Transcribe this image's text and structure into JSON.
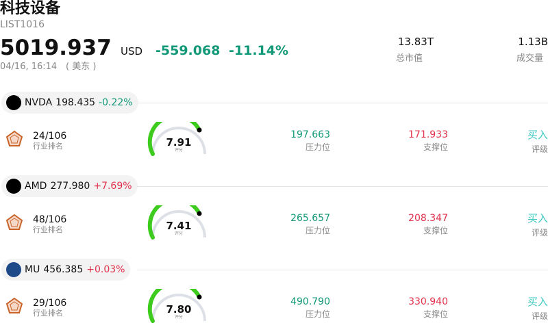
{
  "header": {
    "title": "科技设备",
    "code": "LIST1016",
    "price": "5019.937",
    "currency": "USD",
    "change": "-559.068",
    "change_pct": "-11.14%",
    "time": "04/16, 16:14",
    "market": "( 美东 )",
    "stats": [
      {
        "value": "13.83T",
        "label": "总市值"
      },
      {
        "value": "1.13B",
        "label": "成交量"
      }
    ]
  },
  "column_labels": {
    "rank": "行业排名",
    "score": "评分",
    "resistance": "压力位",
    "support": "支撑位",
    "rating": "评级"
  },
  "stocks": [
    {
      "ticker": "NVDA",
      "price": "198.435",
      "change": "-0.22%",
      "rank": "24/106",
      "score": "7.91",
      "resistance": "197.663",
      "support": "171.933",
      "rating": "买入"
    },
    {
      "ticker": "AMD",
      "price": "277.980",
      "change": "+7.69%",
      "rank": "48/106",
      "score": "7.41",
      "resistance": "265.657",
      "support": "208.347",
      "rating": "买入"
    },
    {
      "ticker": "MU",
      "price": "456.385",
      "change": "+0.03%",
      "rank": "29/106",
      "score": "7.80",
      "resistance": "490.790",
      "support": "330.940",
      "rating": "买入"
    }
  ]
}
